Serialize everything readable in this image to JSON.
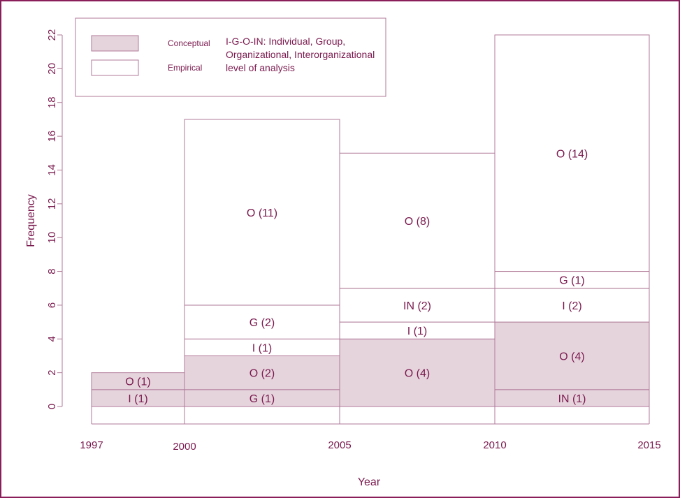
{
  "colors": {
    "frame": "#8a1e5a",
    "axis": "#b07a98",
    "text": "#7a1a4e",
    "conceptual_fill": "#e6d4dd",
    "empirical_fill": "#ffffff"
  },
  "chart_data": {
    "type": "bar",
    "subtype": "stacked histogram with variable-width year bins",
    "xlabel": "Year",
    "ylabel": "Frequency",
    "ylim": [
      0,
      22
    ],
    "yticks": [
      "0",
      "2",
      "4",
      "6",
      "8",
      "10",
      "12",
      "14",
      "16",
      "18",
      "20",
      "22"
    ],
    "xticks": [
      "1997",
      "2000",
      "2005",
      "2010",
      "2015"
    ],
    "legend": {
      "position": "top-left",
      "entries": [
        {
          "label": "Conceptual",
          "fill": "conceptual"
        },
        {
          "label": "Empirical",
          "fill": "empirical"
        }
      ],
      "note": [
        "I-G-O-IN: Individual, Group,",
        "Organizational, Interorganizational",
        "level of analysis"
      ]
    },
    "bins": [
      {
        "x_start": 1997,
        "x_end": 2000,
        "total": 2,
        "segments": [
          {
            "label": "I (1)",
            "type": "conceptual",
            "value": 1
          },
          {
            "label": "O (1)",
            "type": "conceptual",
            "value": 1
          }
        ]
      },
      {
        "x_start": 2000,
        "x_end": 2005,
        "total": 17,
        "segments": [
          {
            "label": "G (1)",
            "type": "conceptual",
            "value": 1
          },
          {
            "label": "O  (2)",
            "type": "conceptual",
            "value": 2
          },
          {
            "label": "I (1)",
            "type": "empirical",
            "value": 1
          },
          {
            "label": "G (2)",
            "type": "empirical",
            "value": 2
          },
          {
            "label": "O  (11)",
            "type": "empirical",
            "value": 11
          }
        ]
      },
      {
        "x_start": 2005,
        "x_end": 2010,
        "total": 15,
        "segments": [
          {
            "label": "O  (4)",
            "type": "conceptual",
            "value": 4
          },
          {
            "label": "I (1)",
            "type": "empirical",
            "value": 1
          },
          {
            "label": "IN  (2)",
            "type": "empirical",
            "value": 2
          },
          {
            "label": "O (8)",
            "type": "empirical",
            "value": 8
          }
        ]
      },
      {
        "x_start": 2010,
        "x_end": 2015,
        "total": 22,
        "segments": [
          {
            "label": "IN  (1)",
            "type": "conceptual",
            "value": 1
          },
          {
            "label": "O  (4)",
            "type": "conceptual",
            "value": 4
          },
          {
            "label": "I (2)",
            "type": "empirical",
            "value": 2
          },
          {
            "label": "G (1)",
            "type": "empirical",
            "value": 1
          },
          {
            "label": "O (14)",
            "type": "empirical",
            "value": 14
          }
        ]
      }
    ]
  }
}
